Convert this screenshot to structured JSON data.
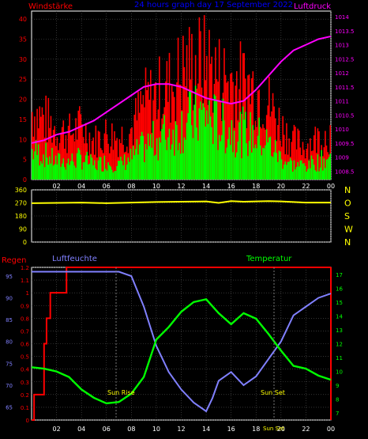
{
  "header": {
    "wind_label": "Windstärke",
    "title": "24 hours graph day  17 September 2022",
    "pressure_label": "Luftdruck"
  },
  "colors": {
    "background": "#000000",
    "plot_bg": "#000000",
    "grid": "#555555",
    "wind_gust": "#ff0000",
    "wind_avg": "#00ff00",
    "pressure": "#ff00ff",
    "direction": "#ffff00",
    "rain": "#ff0000",
    "humidity": "#8080ff",
    "temperature": "#00ff00",
    "title_blue": "#0000ff",
    "axis_white": "#ffffff",
    "sun_marker": "#ffff00"
  },
  "panel3": {
    "rain_label": "Regen",
    "humidity_label": "Luftfeuchte",
    "temp_label": "Temperatur",
    "sunrise_label": "Sun Rise",
    "sunset_label": "Sun Set",
    "sun_bottom_label": "Sun Set"
  },
  "chart_data": [
    {
      "type": "bar",
      "title": "24 hours graph day  17 September 2022",
      "xlabel": "",
      "ylabel": "Windstärke",
      "x_ticks": [
        "02",
        "04",
        "06",
        "08",
        "10",
        "12",
        "14",
        "16",
        "18",
        "20",
        "22",
        "00"
      ],
      "ylim": [
        0,
        42
      ],
      "y_ticks": [
        "0",
        "5",
        "10",
        "15",
        "20",
        "25",
        "30",
        "35",
        "40"
      ],
      "y2label": "Luftdruck",
      "y2lim": [
        1008.2,
        1014.2
      ],
      "y2_ticks": [
        "1008.5",
        "1009",
        "1009.5",
        "1010",
        "1010.5",
        "1011",
        "1011.5",
        "1012",
        "1012.5",
        "1013",
        "1013.5",
        "1014"
      ],
      "series": [
        {
          "name": "Windstärke",
          "x": [
            0,
            1,
            2,
            3,
            4,
            5,
            6,
            7,
            8,
            9,
            10,
            11,
            12,
            13,
            14,
            15,
            16,
            17,
            18,
            19,
            20,
            21,
            22,
            23,
            24
          ],
          "values": [
            18,
            16,
            13,
            12,
            14,
            10,
            12,
            11,
            13,
            20,
            22,
            24,
            28,
            30,
            31,
            27,
            26,
            25,
            24,
            20,
            14,
            10,
            9,
            11,
            12
          ]
        },
        {
          "name": "Windstärke",
          "x": [
            0,
            1,
            2,
            3,
            4,
            5,
            6,
            7,
            8,
            9,
            10,
            11,
            12,
            13,
            14,
            15,
            16,
            17,
            18,
            19,
            20,
            21,
            22,
            23,
            24
          ],
          "values": [
            8,
            7,
            5,
            5,
            6,
            4,
            5,
            4,
            6,
            9,
            11,
            13,
            15,
            17,
            18,
            15,
            14,
            13,
            12,
            10,
            6,
            4,
            4,
            5,
            6
          ]
        },
        {
          "name": "Luftdruck",
          "x": [
            0,
            1,
            2,
            3,
            4,
            5,
            6,
            7,
            8,
            9,
            10,
            11,
            12,
            13,
            14,
            15,
            16,
            17,
            18,
            19,
            20,
            21,
            22,
            23,
            24
          ],
          "values": [
            1009.5,
            1009.6,
            1009.8,
            1009.9,
            1010.1,
            1010.3,
            1010.6,
            1010.9,
            1011.2,
            1011.5,
            1011.6,
            1011.6,
            1011.5,
            1011.3,
            1011.1,
            1011.0,
            1010.9,
            1011.0,
            1011.4,
            1011.9,
            1012.4,
            1012.8,
            1013.0,
            1013.2,
            1013.3
          ]
        }
      ]
    },
    {
      "type": "line",
      "xlabel": "",
      "ylabel": "",
      "ylim": [
        0,
        360
      ],
      "y_ticks": [
        "0",
        "90",
        "180",
        "270",
        "360"
      ],
      "y2_labels": [
        "N",
        "W",
        "S",
        "O",
        "N"
      ],
      "series": [
        {
          "name": "",
          "x": [
            0,
            2,
            4,
            6,
            8,
            10,
            12,
            14,
            15,
            16,
            17,
            18,
            19,
            20,
            22,
            24
          ],
          "values": [
            268,
            270,
            272,
            268,
            272,
            276,
            278,
            280,
            270,
            282,
            278,
            280,
            282,
            280,
            272,
            272
          ]
        }
      ]
    },
    {
      "type": "line",
      "xlabel": "",
      "ylabel": "Regen",
      "ylim": [
        0,
        1.2
      ],
      "y_ticks": [
        "0",
        "0.1",
        "0.2",
        "0.3",
        "0.4",
        "0.5",
        "0.6",
        "0.7",
        "0.8",
        "0.9",
        "1",
        "1.1",
        "1.2"
      ],
      "humidity_ticks": [
        "65",
        "70",
        "75",
        "80",
        "85",
        "90",
        "95"
      ],
      "temp_ticks": [
        "7",
        "8",
        "9",
        "10",
        "11",
        "12",
        "13",
        "14",
        "15",
        "16",
        "17"
      ],
      "series": [
        {
          "name": "Regen",
          "x": [
            0,
            0.2,
            0.2,
            1,
            1,
            1.2,
            1.2,
            1.5,
            1.5,
            2.8,
            2.8,
            24
          ],
          "values": [
            0,
            0,
            0.2,
            0.2,
            0.6,
            0.6,
            0.8,
            0.8,
            1.0,
            1.0,
            1.2,
            1.2
          ]
        },
        {
          "name": "Luftfeuchte",
          "x": [
            0,
            2,
            4,
            6,
            7,
            8,
            9,
            10,
            11,
            12,
            13,
            14,
            14.5,
            15,
            16,
            17,
            18,
            19,
            20,
            21,
            22,
            23,
            24
          ],
          "values": [
            96,
            96,
            96,
            96,
            96,
            95,
            88,
            79,
            73,
            69,
            66,
            64,
            67,
            71,
            73,
            70,
            72,
            76,
            80,
            86,
            88,
            90,
            91
          ]
        },
        {
          "name": "Temperatur",
          "x": [
            0,
            1,
            2,
            3,
            4,
            5,
            6,
            7,
            8,
            9,
            10,
            11,
            12,
            13,
            14,
            15,
            16,
            17,
            18,
            19,
            20,
            21,
            22,
            23,
            24
          ],
          "values": [
            10.3,
            10.2,
            10.0,
            9.6,
            8.7,
            8.1,
            7.7,
            7.8,
            8.4,
            9.6,
            12.3,
            13.2,
            14.3,
            15.0,
            15.2,
            14.2,
            13.4,
            14.2,
            13.8,
            12.7,
            11.5,
            10.4,
            10.2,
            9.7,
            9.4
          ]
        }
      ]
    }
  ]
}
